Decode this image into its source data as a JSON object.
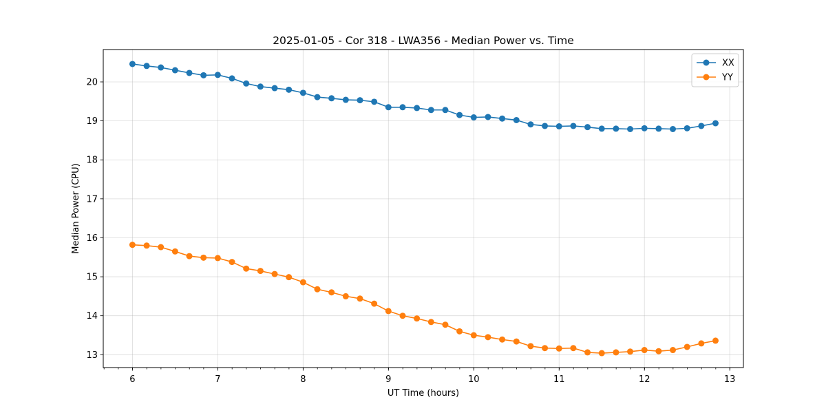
{
  "chart_data": {
    "type": "line",
    "title": "2025-01-05 - Cor 318 - LWA356 - Median Power vs. Time",
    "xlabel": "UT Time (hours)",
    "ylabel": "Median Power (CPU)",
    "xlim": [
      5.658,
      13.16
    ],
    "ylim": [
      12.67,
      20.83
    ],
    "xticks": [
      6,
      7,
      8,
      9,
      10,
      11,
      12,
      13
    ],
    "yticks": [
      13,
      14,
      15,
      16,
      17,
      18,
      19,
      20
    ],
    "x_minor_step": 0.1667,
    "grid": true,
    "legend_position": "top-right",
    "x": [
      6.0,
      6.1667,
      6.3333,
      6.5,
      6.6667,
      6.8333,
      7.0,
      7.1667,
      7.3333,
      7.5,
      7.6667,
      7.8333,
      8.0,
      8.1667,
      8.3333,
      8.5,
      8.6667,
      8.8333,
      9.0,
      9.1667,
      9.3333,
      9.5,
      9.6667,
      9.8333,
      10.0,
      10.1667,
      10.3333,
      10.5,
      10.6667,
      10.8333,
      11.0,
      11.1667,
      11.3333,
      11.5,
      11.6667,
      11.8333,
      12.0,
      12.1667,
      12.3333,
      12.5,
      12.6667,
      12.8333
    ],
    "series": [
      {
        "name": "XX",
        "color": "#1f77b4",
        "values": [
          20.46,
          20.41,
          20.37,
          20.3,
          20.23,
          20.17,
          20.18,
          20.09,
          19.96,
          19.88,
          19.84,
          19.8,
          19.72,
          19.61,
          19.58,
          19.54,
          19.53,
          19.49,
          19.35,
          19.35,
          19.33,
          19.28,
          19.28,
          19.15,
          19.09,
          19.1,
          19.06,
          19.02,
          18.91,
          18.87,
          18.86,
          18.87,
          18.84,
          18.8,
          18.8,
          18.79,
          18.81,
          18.8,
          18.79,
          18.81,
          18.87,
          18.94
        ]
      },
      {
        "name": "YY",
        "color": "#ff7f0e",
        "values": [
          15.82,
          15.8,
          15.76,
          15.65,
          15.53,
          15.49,
          15.48,
          15.38,
          15.21,
          15.15,
          15.07,
          14.99,
          14.86,
          14.68,
          14.6,
          14.5,
          14.44,
          14.31,
          14.12,
          14.0,
          13.93,
          13.84,
          13.77,
          13.6,
          13.5,
          13.45,
          13.39,
          13.34,
          13.22,
          13.17,
          13.16,
          13.17,
          13.06,
          13.04,
          13.06,
          13.08,
          13.12,
          13.09,
          13.12,
          13.2,
          13.29,
          13.36
        ]
      }
    ]
  }
}
